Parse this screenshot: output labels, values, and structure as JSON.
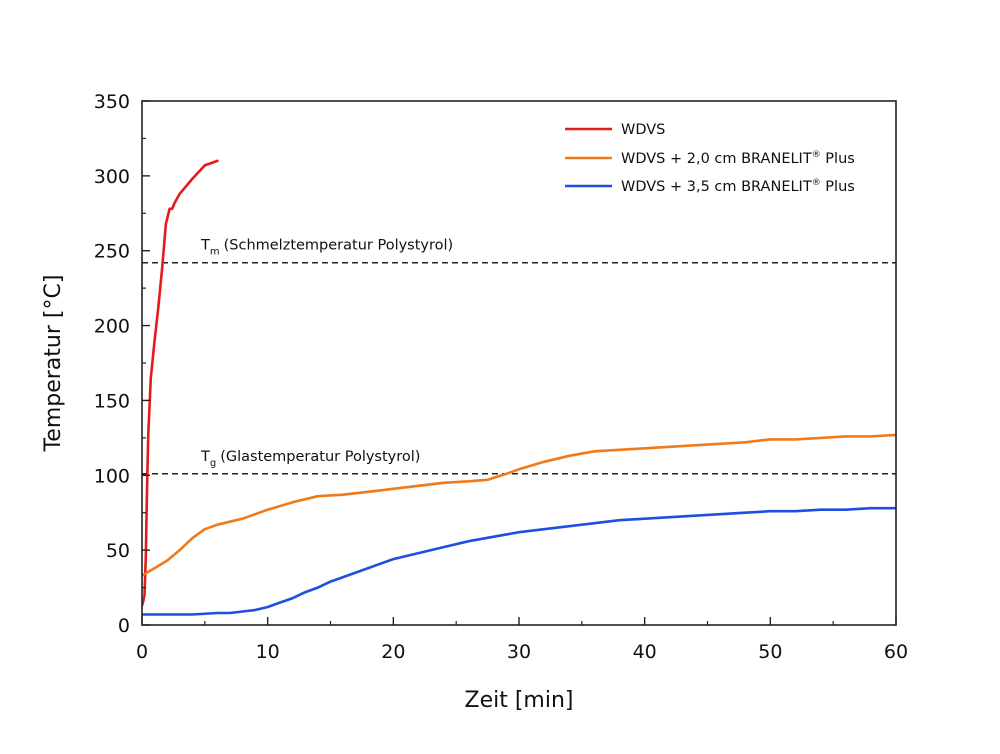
{
  "chart_data": {
    "type": "line",
    "xlabel": "Zeit [min]",
    "ylabel": "Temperatur [°C]",
    "xlim": [
      0,
      60
    ],
    "ylim": [
      0,
      350
    ],
    "xticks": [
      0,
      10,
      20,
      30,
      40,
      50,
      60
    ],
    "yticks": [
      0,
      50,
      100,
      150,
      200,
      250,
      300,
      350
    ],
    "grid": false,
    "legend_position": "top-right",
    "series": [
      {
        "name": "WDVS",
        "color": "#e41a1c",
        "x": [
          0,
          0.1,
          0.2,
          0.3,
          0.4,
          0.5,
          0.7,
          1.0,
          1.3,
          1.6,
          1.9,
          2.2,
          2.4,
          2.6,
          3.0,
          4.0,
          5.0,
          6.0
        ],
        "y": [
          13,
          16,
          20,
          45,
          90,
          128,
          165,
          190,
          212,
          238,
          268,
          278,
          278,
          282,
          288,
          298,
          307,
          310
        ]
      },
      {
        "name": "WDVS + 2,0 cm BRANELIT® Plus",
        "color": "#f07a1a",
        "x": [
          0,
          1,
          2,
          3,
          4,
          5,
          6,
          7,
          8,
          9,
          10,
          12,
          14,
          16,
          18,
          20,
          22,
          24,
          26,
          27.5,
          29,
          30,
          32,
          34,
          36,
          38,
          40,
          42,
          44,
          46,
          48,
          50,
          52,
          54,
          56,
          58,
          60
        ],
        "y": [
          33,
          38,
          43,
          50,
          58,
          64,
          67,
          69,
          71,
          74,
          77,
          82,
          86,
          87,
          89,
          91,
          93,
          95,
          96,
          97,
          101,
          104,
          109,
          113,
          116,
          117,
          118,
          119,
          120,
          121,
          122,
          124,
          124,
          125,
          126,
          126,
          127
        ]
      },
      {
        "name": "WDVS + 3,5 cm BRANELIT® Plus",
        "color": "#1f4fe0",
        "x": [
          0,
          2,
          4,
          6,
          7,
          8,
          9,
          10,
          11,
          12,
          13,
          14,
          15,
          16,
          18,
          20,
          22,
          24,
          26,
          28,
          30,
          32,
          34,
          36,
          38,
          40,
          42,
          44,
          46,
          48,
          50,
          52,
          54,
          56,
          58,
          60
        ],
        "y": [
          7,
          7,
          7,
          8,
          8,
          9,
          10,
          12,
          15,
          18,
          22,
          25,
          29,
          32,
          38,
          44,
          48,
          52,
          56,
          59,
          62,
          64,
          66,
          68,
          70,
          71,
          72,
          73,
          74,
          75,
          76,
          76,
          77,
          77,
          78,
          78
        ]
      }
    ],
    "reference_lines": [
      {
        "y": 242,
        "symbol": "T",
        "subscript": "m",
        "label": "(Schmelztemperatur Polystyrol)"
      },
      {
        "y": 101,
        "symbol": "T",
        "subscript": "g",
        "label": "(Glastemperatur Polystyrol)"
      }
    ],
    "legend": [
      {
        "text": "WDVS",
        "mark": "",
        "suffix": ""
      },
      {
        "text": "WDVS + 2,0 cm BRANELIT",
        "mark": "®",
        "suffix": " Plus"
      },
      {
        "text": "WDVS + 3,5 cm BRANELIT",
        "mark": "®",
        "suffix": " Plus"
      }
    ]
  }
}
